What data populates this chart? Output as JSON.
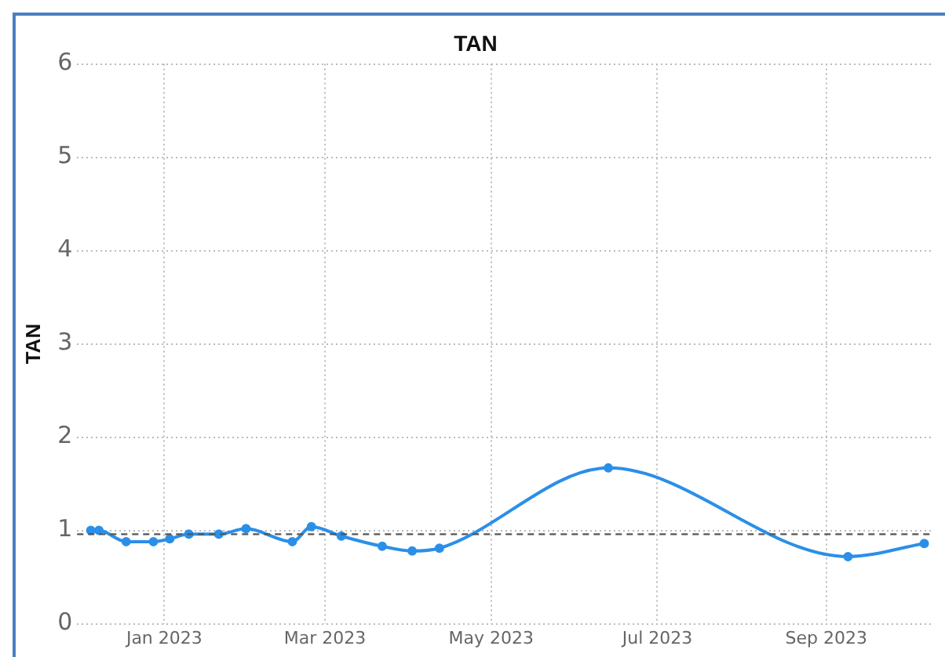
{
  "chart_data": {
    "type": "line",
    "title": "TAN",
    "ylabel": "TAN",
    "x": [
      "2022-12-05",
      "2022-12-08",
      "2022-12-18",
      "2022-12-28",
      "2023-01-03",
      "2023-01-10",
      "2023-01-21",
      "2023-01-31",
      "2023-02-17",
      "2023-02-24",
      "2023-03-07",
      "2023-03-22",
      "2023-04-02",
      "2023-04-12",
      "2023-06-13",
      "2023-09-09",
      "2023-10-07"
    ],
    "series": [
      {
        "color": "#2b8fe8",
        "values": [
          1.0,
          1.0,
          0.88,
          0.88,
          0.91,
          0.96,
          0.96,
          1.02,
          0.88,
          1.04,
          0.94,
          0.83,
          0.78,
          0.81,
          1.67,
          0.72,
          0.86
        ]
      }
    ],
    "xlim": [
      "2022-11-30",
      "2023-10-10"
    ],
    "xticks": [
      {
        "value": "2023-01-01",
        "label": "Jan 2023"
      },
      {
        "value": "2023-03-01",
        "label": "Mar 2023"
      },
      {
        "value": "2023-05-01",
        "label": "May 2023"
      },
      {
        "value": "2023-07-01",
        "label": "Jul 2023"
      },
      {
        "value": "2023-09-01",
        "label": "Sep 2023"
      }
    ],
    "ylim": [
      0,
      6
    ],
    "yticks": [
      0,
      1,
      2,
      3,
      4,
      5,
      6
    ],
    "ref_lines": [
      {
        "axis": "y",
        "value": 0.96,
        "color": "#555555",
        "line_style": "dashed"
      }
    ],
    "grid": true,
    "legend": false,
    "marker": "circle",
    "line_style": "solid"
  }
}
